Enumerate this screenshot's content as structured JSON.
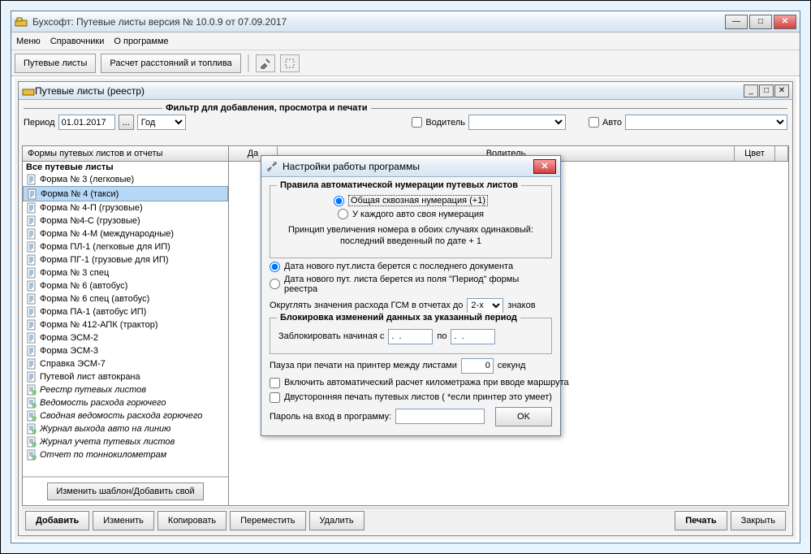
{
  "main": {
    "title": "Бухсофт: Путевые листы версия № 10.0.9 от 07.09.2017"
  },
  "menu": {
    "m1": "Меню",
    "m2": "Справочники",
    "m3": "О программе"
  },
  "toolbar": {
    "b1": "Путевые листы",
    "b2": "Расчет расстояний и топлива"
  },
  "sub": {
    "title": "Путевые листы (реестр)"
  },
  "filter": {
    "heading": "Фильтр для добавления, просмотра и печати",
    "period_lbl": "Период",
    "period_val": "01.01.2017",
    "year": "Год",
    "driver_chk": "Водитель",
    "auto_chk": "Авто"
  },
  "grid": {
    "c1": "Формы путевых листов и отчеты",
    "c2": "Да",
    "c3": "Водитель",
    "c4": "Цвет"
  },
  "tree": [
    {
      "label": "Все путевые листы",
      "bold": true
    },
    {
      "label": "Форма № 3 (легковые)"
    },
    {
      "label": "Форма № 4 (такси)",
      "sel": true
    },
    {
      "label": "Форма № 4-П (грузовые)"
    },
    {
      "label": "Форма №4-С (грузовые)"
    },
    {
      "label": "Форма № 4-М (международные)"
    },
    {
      "label": "Форма ПЛ-1 (легковые для ИП)"
    },
    {
      "label": "Форма ПГ-1 (грузовые для ИП)"
    },
    {
      "label": "Форма № 3 спец"
    },
    {
      "label": "Форма № 6 (автобус)"
    },
    {
      "label": "Форма № 6 спец (автобус)"
    },
    {
      "label": "Форма ПА-1 (автобус ИП)"
    },
    {
      "label": "Форма № 412-АПК (трактор)"
    },
    {
      "label": "Форма ЭСМ-2"
    },
    {
      "label": "Форма ЭСМ-3"
    },
    {
      "label": "Справка ЭСМ-7"
    },
    {
      "label": "Путевой лист автокрана"
    },
    {
      "label": "Реестр путевых листов",
      "ital": true,
      "alt": true
    },
    {
      "label": "Ведомость расхода горючего",
      "ital": true,
      "alt": true
    },
    {
      "label": "Сводная ведомость расхода горючего",
      "ital": true,
      "alt": true
    },
    {
      "label": "Журнал выхода авто на линию",
      "ital": true,
      "alt": true
    },
    {
      "label": "Журнал учета путевых листов",
      "ital": true,
      "alt": true
    },
    {
      "label": "Отчет по тоннокилометрам",
      "ital": true,
      "alt": true
    }
  ],
  "left_foot": "Изменить шаблон/Добавить свой",
  "bottom": {
    "add": "Добавить",
    "edit": "Изменить",
    "copy": "Копировать",
    "move": "Переместить",
    "del": "Удалить",
    "print": "Печать",
    "close": "Закрыть"
  },
  "dlg": {
    "title": "Настройки работы программы",
    "grp1": "Правила автоматической нумерации путевых листов",
    "r1": "Общая сквозная нумерация (+1)",
    "r2": "У каждого авто своя нумерация",
    "note": "Принцип увеличения номера в обоих случаях одинаковый: последний введенный по дате + 1",
    "r3": "Дата нового пут.листа берется с последнего документа",
    "r4": "Дата нового пут. листа берется из поля \"Период\"  формы реестра",
    "round1": "Округлять значения расхода ГСМ в отчетах до",
    "round_val": "2-x",
    "round2": "знаков",
    "grp2": "Блокировка изменений данных за указанный период",
    "lock": "Заблокировать начиная с",
    "to": "по",
    "d1": ".  .",
    "d2": ".  .",
    "pause1": "Пауза при печати на принтер между листами",
    "pause_val": "0",
    "pause2": "секунд",
    "chk1": "Включить автоматический расчет километража при вводе маршрута",
    "chk2": "Двусторонняя печать путевых листов ( *если принтер это умеет)",
    "pwd": "Пароль на вход в программу:",
    "ok": "OK"
  }
}
